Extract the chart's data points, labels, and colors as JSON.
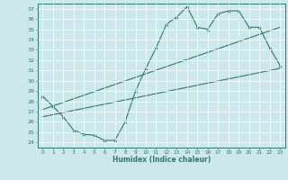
{
  "xlabel": "Humidex (Indice chaleur)",
  "bg_color": "#cde8ec",
  "line_color": "#2d7a6b",
  "xlim": [
    -0.5,
    23.5
  ],
  "ylim": [
    23.5,
    37.5
  ],
  "xticks": [
    0,
    1,
    2,
    3,
    4,
    5,
    6,
    7,
    8,
    9,
    10,
    11,
    12,
    13,
    14,
    15,
    16,
    17,
    18,
    19,
    20,
    21,
    22,
    23
  ],
  "yticks": [
    24,
    25,
    26,
    27,
    28,
    29,
    30,
    31,
    32,
    33,
    34,
    35,
    36,
    37
  ],
  "line1_x": [
    0,
    1,
    2,
    3,
    4,
    5,
    6,
    7,
    8,
    9,
    10,
    11,
    12,
    13,
    14,
    15,
    16,
    17,
    18,
    19,
    20,
    21,
    22,
    23
  ],
  "line1_y": [
    28.5,
    27.5,
    26.5,
    25.2,
    24.8,
    24.7,
    24.2,
    24.2,
    26.0,
    29.0,
    31.2,
    33.2,
    35.5,
    36.2,
    37.2,
    35.2,
    35.0,
    36.5,
    36.8,
    36.8,
    35.2,
    35.2,
    33.2,
    31.5
  ],
  "line2_x": [
    0,
    23
  ],
  "line2_y": [
    26.5,
    31.2
  ],
  "line3_x": [
    0,
    23
  ],
  "line3_y": [
    27.2,
    35.2
  ]
}
